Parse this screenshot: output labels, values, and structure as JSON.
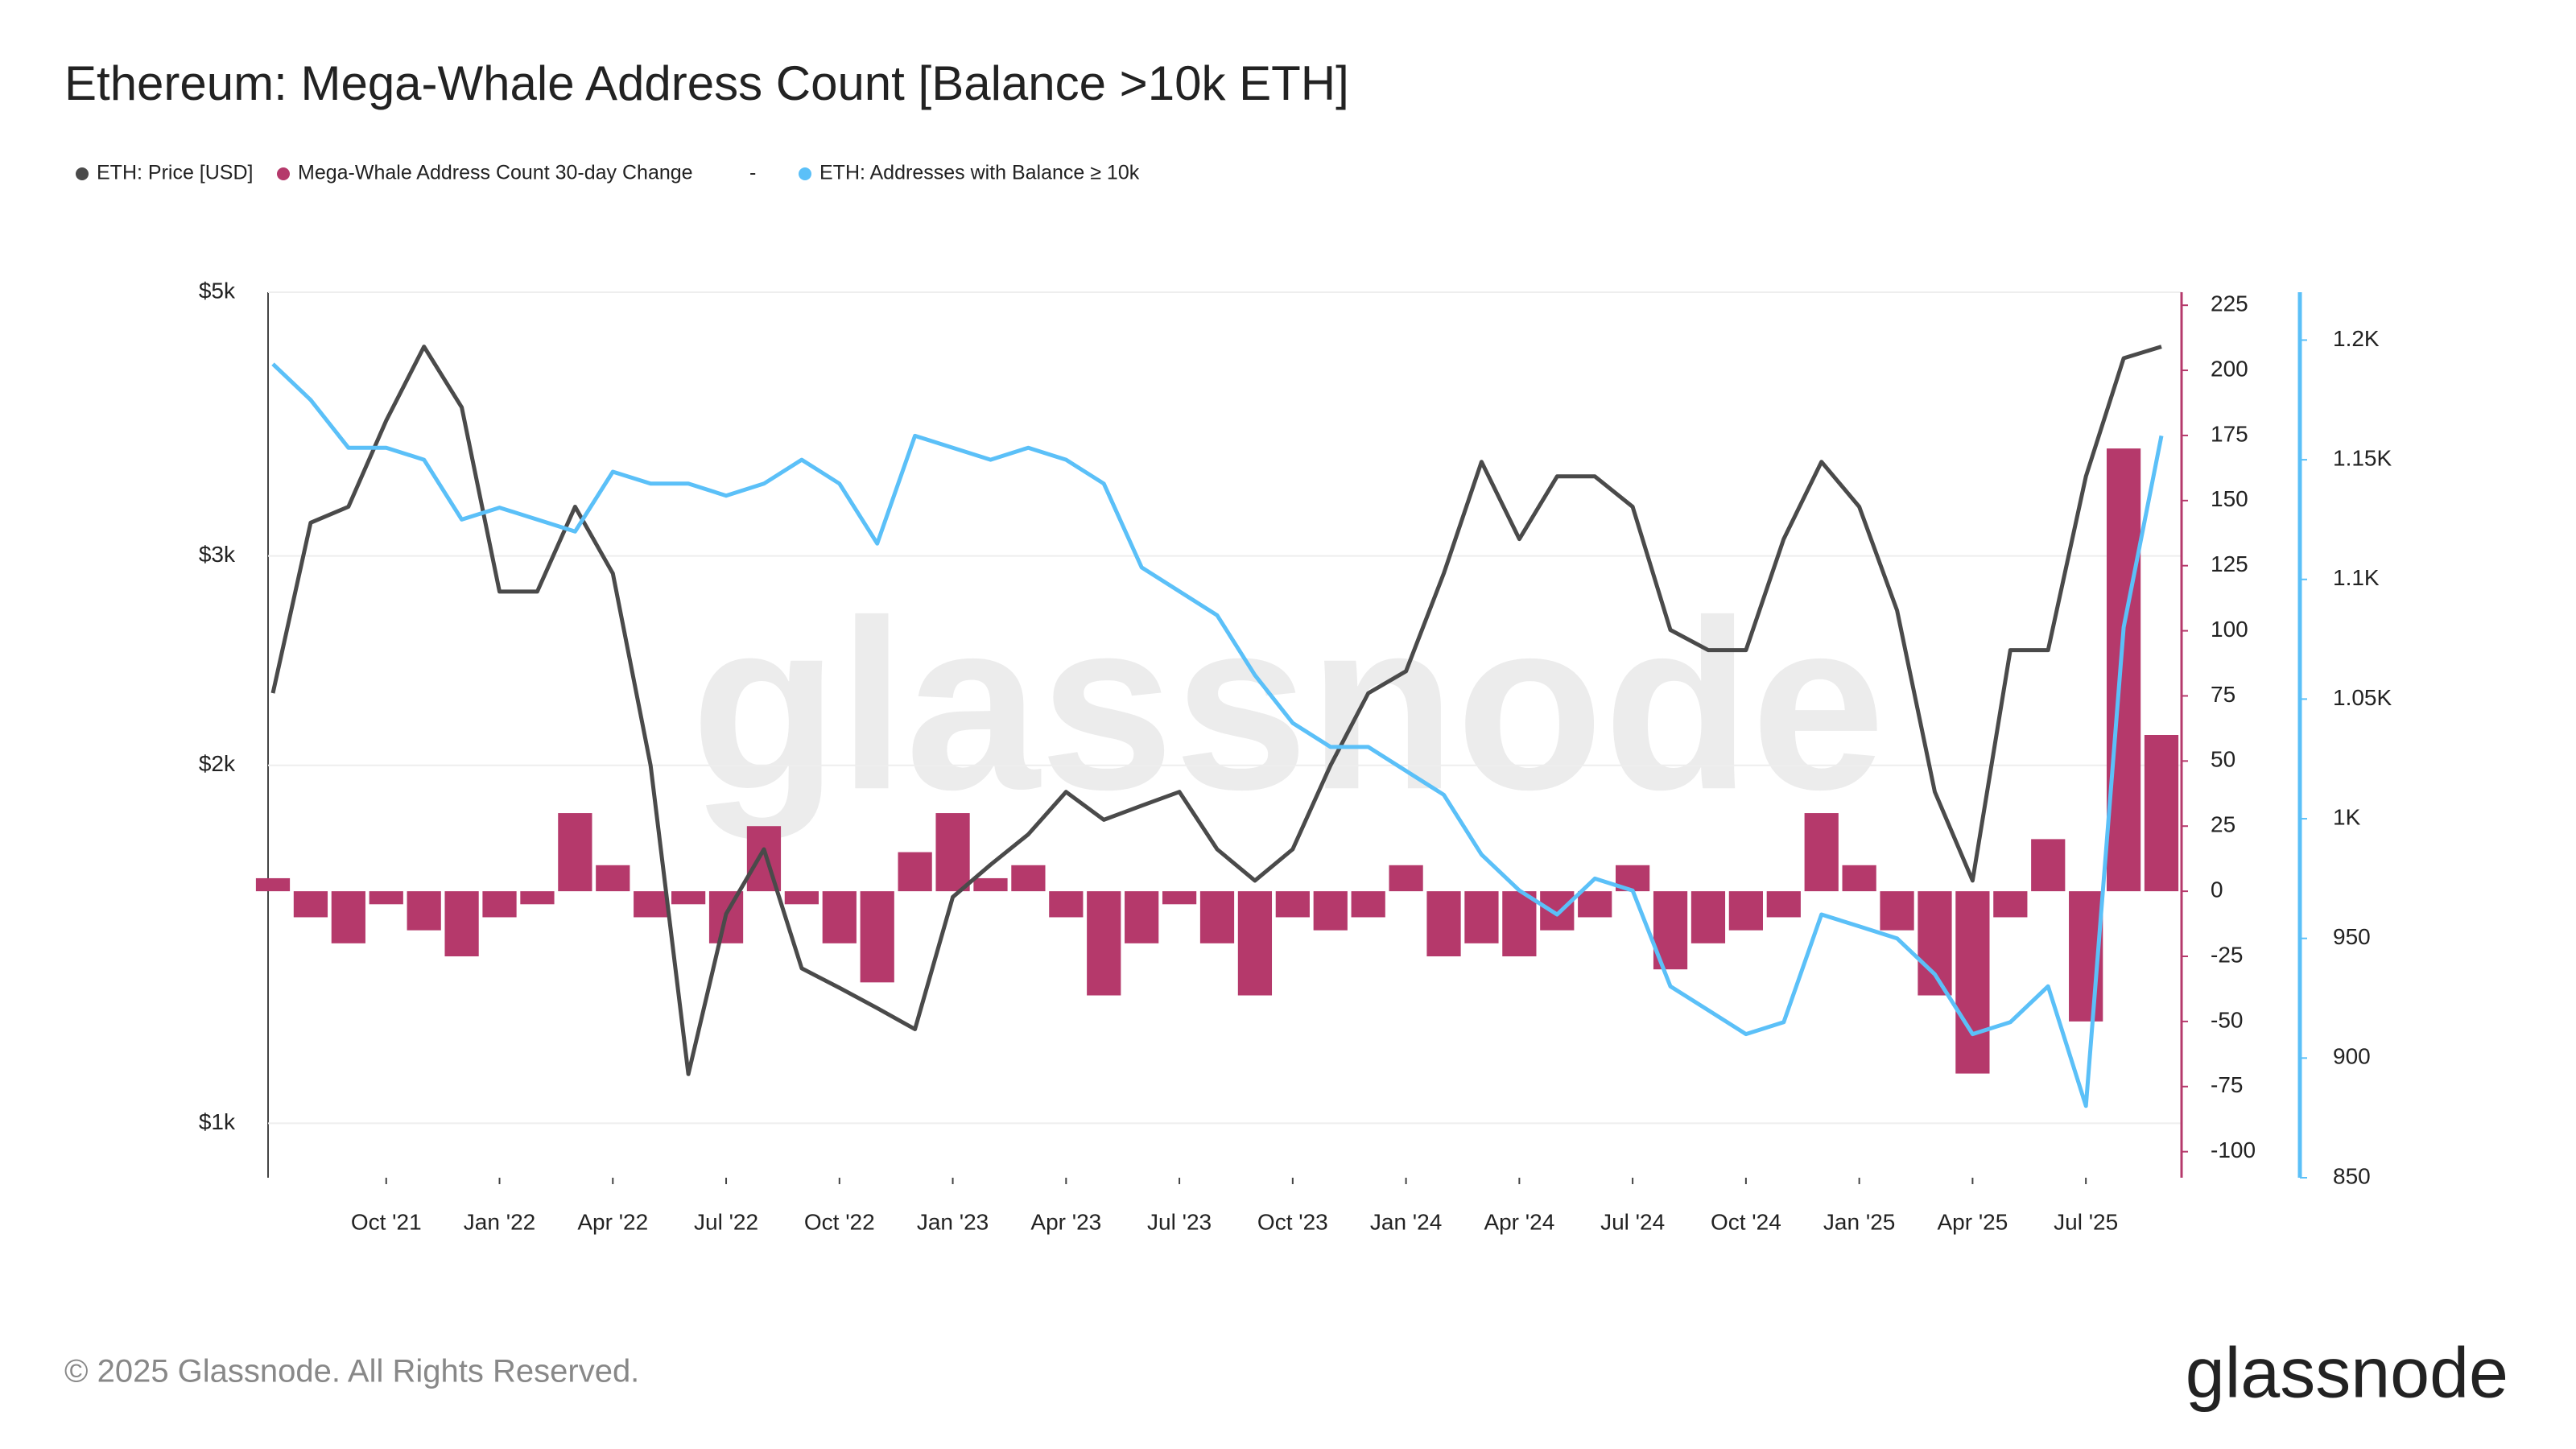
{
  "chart_data": {
    "type": "line",
    "title": "Ethereum: Mega-Whale Address Count [Balance >10k ETH]",
    "legend_note": "-",
    "watermark": "glassnode",
    "footer": "© 2025 Glassnode. All Rights Reserved.",
    "logo": "glassnode",
    "grid": true,
    "y_scale": "log",
    "x": [
      "2021-07",
      "2021-08",
      "2021-09",
      "2021-10",
      "2021-11",
      "2021-12",
      "2022-01",
      "2022-02",
      "2022-03",
      "2022-04",
      "2022-05",
      "2022-06",
      "2022-07",
      "2022-08",
      "2022-09",
      "2022-10",
      "2022-11",
      "2022-12",
      "2023-01",
      "2023-02",
      "2023-03",
      "2023-04",
      "2023-05",
      "2023-06",
      "2023-07",
      "2023-08",
      "2023-09",
      "2023-10",
      "2023-11",
      "2023-12",
      "2024-01",
      "2024-02",
      "2024-03",
      "2024-04",
      "2024-05",
      "2024-06",
      "2024-07",
      "2024-08",
      "2024-09",
      "2024-10",
      "2024-11",
      "2024-12",
      "2025-01",
      "2025-02",
      "2025-03",
      "2025-04",
      "2025-05",
      "2025-06",
      "2025-07",
      "2025-08",
      "2025-09"
    ],
    "xlim": [
      "2021-07",
      "2025-09"
    ],
    "xticks": [
      {
        "value": "2021-10",
        "label": "Oct '21"
      },
      {
        "value": "2022-01",
        "label": "Jan '22"
      },
      {
        "value": "2022-04",
        "label": "Apr '22"
      },
      {
        "value": "2022-07",
        "label": "Jul '22"
      },
      {
        "value": "2022-10",
        "label": "Oct '22"
      },
      {
        "value": "2023-01",
        "label": "Jan '23"
      },
      {
        "value": "2023-04",
        "label": "Apr '23"
      },
      {
        "value": "2023-07",
        "label": "Jul '23"
      },
      {
        "value": "2023-10",
        "label": "Oct '23"
      },
      {
        "value": "2024-01",
        "label": "Jan '24"
      },
      {
        "value": "2024-04",
        "label": "Apr '24"
      },
      {
        "value": "2024-07",
        "label": "Jul '24"
      },
      {
        "value": "2024-10",
        "label": "Oct '24"
      },
      {
        "value": "2025-01",
        "label": "Jan '25"
      },
      {
        "value": "2025-04",
        "label": "Apr '25"
      },
      {
        "value": "2025-07",
        "label": "Jul '25"
      }
    ],
    "ylim": [
      900,
      5000
    ],
    "yticks": [
      {
        "value": 1000,
        "label": "$1k"
      },
      {
        "value": 2000,
        "label": "$2k"
      },
      {
        "value": 3000,
        "label": "$3k"
      },
      {
        "value": 5000,
        "label": "$5k"
      }
    ],
    "y2lim": [
      -110,
      230
    ],
    "y2ticks": [
      -100,
      -75,
      -50,
      -25,
      0,
      25,
      50,
      75,
      100,
      125,
      150,
      175,
      200,
      225
    ],
    "y3lim": [
      850,
      1220
    ],
    "y3ticks": [
      850,
      900,
      950,
      {
        "value": 1000,
        "label": "1K"
      },
      {
        "value": 1050,
        "label": "1.05K"
      },
      {
        "value": 1100,
        "label": "1.1K"
      },
      {
        "value": 1150,
        "label": "1.15K"
      },
      {
        "value": 1200,
        "label": "1.2K"
      }
    ],
    "series": [
      {
        "name": "ETH: Price [USD]",
        "color": "#4a4a4a",
        "type": "line",
        "values": [
          2300,
          3200,
          3300,
          3900,
          4500,
          4000,
          2800,
          2800,
          3300,
          2900,
          2000,
          1100,
          1500,
          1700,
          1350,
          1300,
          1250,
          1200,
          1550,
          1650,
          1750,
          1900,
          1800,
          1850,
          1900,
          1700,
          1600,
          1700,
          2000,
          2300,
          2400,
          2900,
          3600,
          3100,
          3500,
          3500,
          3300,
          2600,
          2500,
          2500,
          3100,
          3600,
          3300,
          2700,
          1900,
          1600,
          2500,
          2500,
          3500,
          4400,
          4500
        ]
      },
      {
        "name": "Mega-Whale Address Count 30-day Change",
        "color": "#b5396b",
        "type": "bar",
        "axis": "y2",
        "values": [
          5,
          -10,
          -20,
          -5,
          -15,
          -25,
          -10,
          -5,
          30,
          10,
          -10,
          -5,
          -20,
          25,
          -5,
          -20,
          -35,
          15,
          30,
          5,
          10,
          -10,
          -40,
          -20,
          -5,
          -20,
          -40,
          -10,
          -15,
          -10,
          10,
          -25,
          -20,
          -25,
          -15,
          -10,
          10,
          -30,
          -20,
          -15,
          -10,
          30,
          10,
          -15,
          -40,
          -70,
          -10,
          20,
          -50,
          170,
          60
        ]
      },
      {
        "name": "ETH: Addresses with Balance ≥ 10k",
        "color": "#5bc0f8",
        "type": "line",
        "axis": "y3",
        "values": [
          1190,
          1175,
          1155,
          1155,
          1150,
          1125,
          1130,
          1125,
          1120,
          1145,
          1140,
          1140,
          1135,
          1140,
          1150,
          1140,
          1115,
          1160,
          1155,
          1150,
          1155,
          1150,
          1140,
          1105,
          1095,
          1085,
          1060,
          1040,
          1030,
          1030,
          1020,
          1010,
          985,
          970,
          960,
          975,
          970,
          930,
          920,
          910,
          915,
          960,
          955,
          950,
          935,
          910,
          915,
          930,
          880,
          1080,
          1160
        ]
      }
    ]
  }
}
